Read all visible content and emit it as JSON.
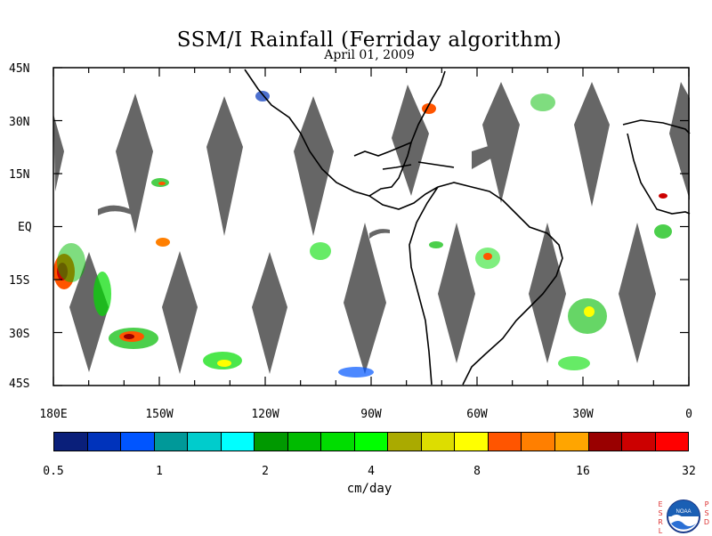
{
  "title": "SSM/I Rainfall (Ferriday algorithm)",
  "subtitle": "April 01, 2009",
  "units": "cm/day",
  "lat_labels": [
    "45N",
    "30N",
    "15N",
    "EQ",
    "15S",
    "30S",
    "45S"
  ],
  "lon_labels": [
    "180E",
    "150W",
    "120W",
    "90W",
    "60W",
    "30W",
    "0"
  ],
  "colorbar_labels": [
    "0.5",
    "1",
    "2",
    "4",
    "8",
    "16",
    "32"
  ],
  "colorbar_colors": [
    "#0a1f7a",
    "#0033bb",
    "#0055ff",
    "#009999",
    "#00cccc",
    "#00ffff",
    "#009900",
    "#00bb00",
    "#00dd00",
    "#00ff00",
    "#aaaa00",
    "#dddd00",
    "#ffff00",
    "#ff5500",
    "#ff7f00",
    "#ffa500",
    "#990000",
    "#cc0000",
    "#ff0000"
  ],
  "logo": {
    "text_left": "ESRL",
    "text_right": "PSD",
    "emblem": "NOAA"
  },
  "colors": {
    "swath_gap": "#666666",
    "coast": "#000000"
  }
}
